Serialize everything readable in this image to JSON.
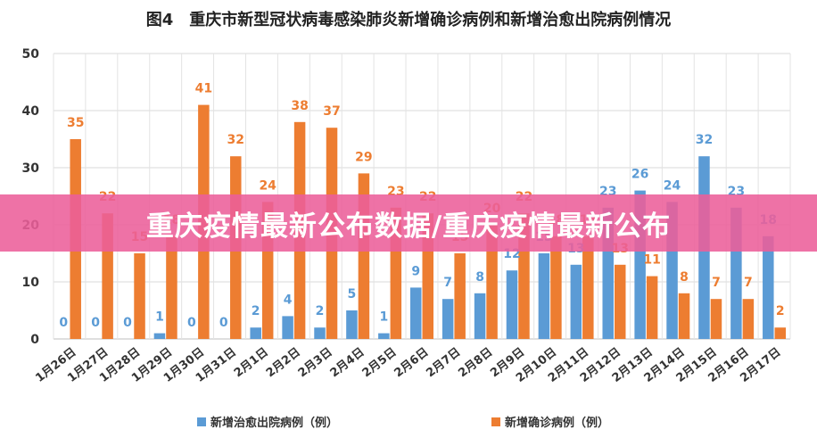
{
  "banner": {
    "text": "重庆疫情最新公布数据/重庆疫情最新公布"
  },
  "colors": {
    "recovered": "#5B9BD5",
    "confirmed": "#ED7D31",
    "banner": "#EC5F9A"
  },
  "chart_data": {
    "type": "bar",
    "title": "图4　重庆市新型冠状病毒感染肺炎新增确诊病例和新增治愈出院病例情况",
    "categories": [
      "1月26日",
      "1月27日",
      "1月28日",
      "1月29日",
      "1月30日",
      "1月31日",
      "2月1日",
      "2月2日",
      "2月3日",
      "2月4日",
      "2月5日",
      "2月6日",
      "2月7日",
      "2月8日",
      "2月9日",
      "2月10日",
      "2月11日",
      "2月12日",
      "2月13日",
      "2月14日",
      "2月15日",
      "2月16日",
      "2月17日"
    ],
    "series": [
      {
        "name": "新增治愈出院病例（例）",
        "color": "#5B9BD5",
        "values": [
          0,
          0,
          0,
          1,
          0,
          0,
          2,
          4,
          2,
          5,
          1,
          9,
          7,
          8,
          12,
          15,
          13,
          23,
          26,
          24,
          32,
          23,
          18
        ]
      },
      {
        "name": "新增确诊病例（例）",
        "color": "#ED7D31",
        "values": [
          35,
          22,
          15,
          18,
          41,
          32,
          24,
          38,
          37,
          29,
          23,
          22,
          15,
          20,
          22,
          18,
          18,
          13,
          11,
          8,
          7,
          7,
          2
        ]
      }
    ],
    "ylim": [
      0,
      50
    ],
    "yticks": [
      0,
      10,
      20,
      30,
      40,
      50
    ],
    "grid": true,
    "legend": "bottom"
  }
}
